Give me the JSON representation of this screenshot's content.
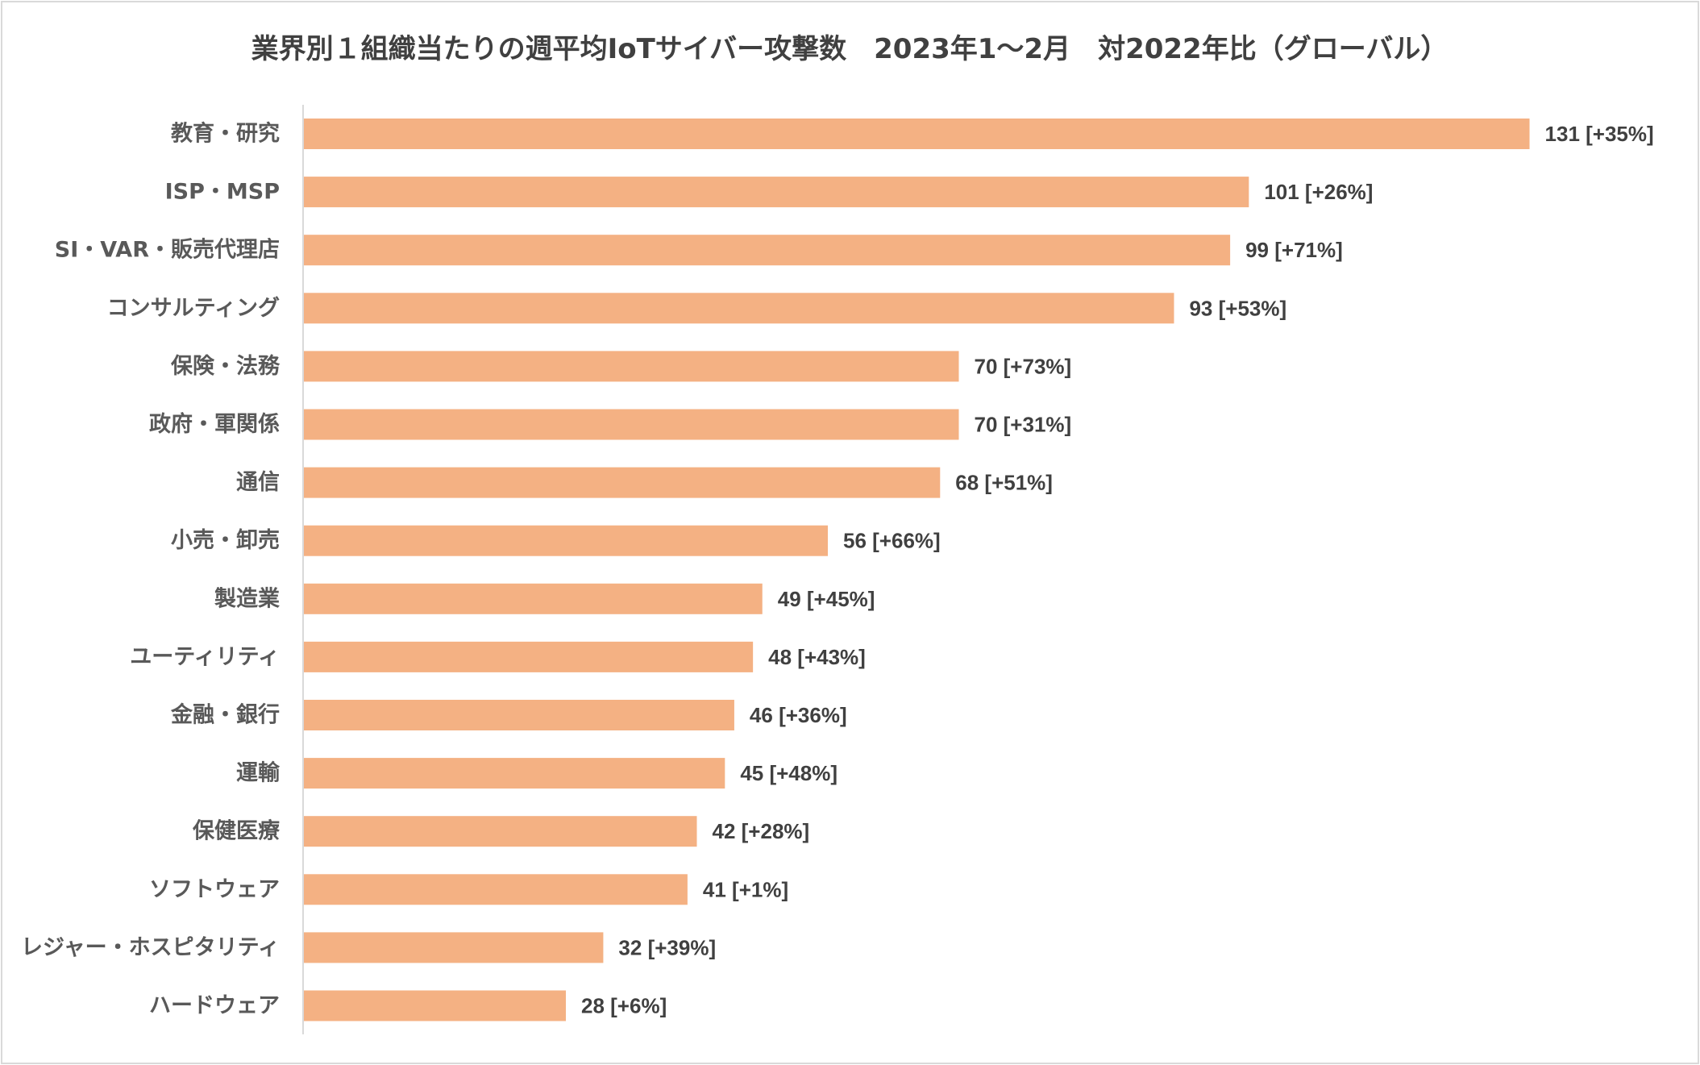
{
  "chart_data": {
    "type": "bar",
    "orientation": "horizontal",
    "title": "業界別１組織当たりの週平均IoTサイバー攻撃数　2023年1～2月　対2022年比（グローバル）",
    "categories": [
      "教育・研究",
      "ISP・MSP",
      "SI・VAR・販売代理店",
      "コンサルティング",
      "保険・法務",
      "政府・軍関係",
      "通信",
      "小売・卸売",
      "製造業",
      "ユーティリティ",
      "金融・銀行",
      "運輸",
      "保健医療",
      "ソフトウェア",
      "レジャー・ホスピタリティ",
      "ハードウェア"
    ],
    "values": [
      131,
      101,
      99,
      93,
      70,
      70,
      68,
      56,
      49,
      48,
      46,
      45,
      42,
      41,
      32,
      28
    ],
    "data_labels": [
      "131 [+35%]",
      "101 [+26%]",
      "99 [+71%]",
      "93 [+53%]",
      "70 [+73%]",
      "70 [+31%]",
      "68 [+51%]",
      "56 [+66%]",
      "49 [+45%]",
      "48 [+43%]",
      "46 [+36%]",
      "45 [+48%]",
      "42 [+28%]",
      "41 [+1%]",
      "32 [+39%]",
      "28 [+6%]"
    ],
    "xlim": [
      0,
      140
    ],
    "grid": false,
    "legend": "none",
    "bar_color": "#F4B183",
    "axis_color": "#D9D9D9",
    "border_color": "#D9D9D9"
  }
}
